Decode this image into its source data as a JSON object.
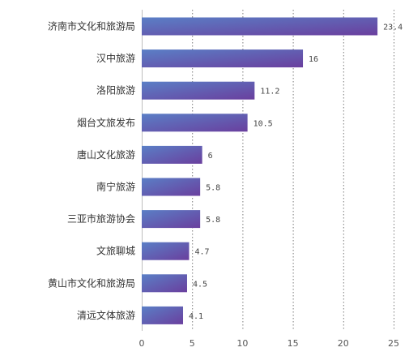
{
  "chart_data": {
    "type": "bar",
    "orientation": "horizontal",
    "categories": [
      "济南市文化和旅游局",
      "汉中旅游",
      "洛阳旅游",
      "烟台文旅发布",
      "唐山文化旅游",
      "南宁旅游",
      "三亚市旅游协会",
      "文旅聊城",
      "黄山市文化和旅游局",
      "清远文体旅游"
    ],
    "values": [
      23.4,
      16,
      11.2,
      10.5,
      6,
      5.8,
      5.8,
      4.7,
      4.5,
      4.1
    ],
    "value_labels": [
      "23.4",
      "16",
      "11.2",
      "10.5",
      "6",
      "5.8",
      "5.8",
      "4.7",
      "4.5",
      "4.1"
    ],
    "xlim": [
      0,
      25
    ],
    "xticks": [
      0,
      5,
      10,
      15,
      20,
      25
    ],
    "xtick_labels": [
      "0",
      "5",
      "10",
      "15",
      "20",
      "25"
    ],
    "grid": "vertical dotted",
    "legend": "none",
    "colors": {
      "bar_start": "#5a7fc6",
      "bar_end": "#6a3f9e",
      "grid": "#7d7d7d"
    }
  }
}
